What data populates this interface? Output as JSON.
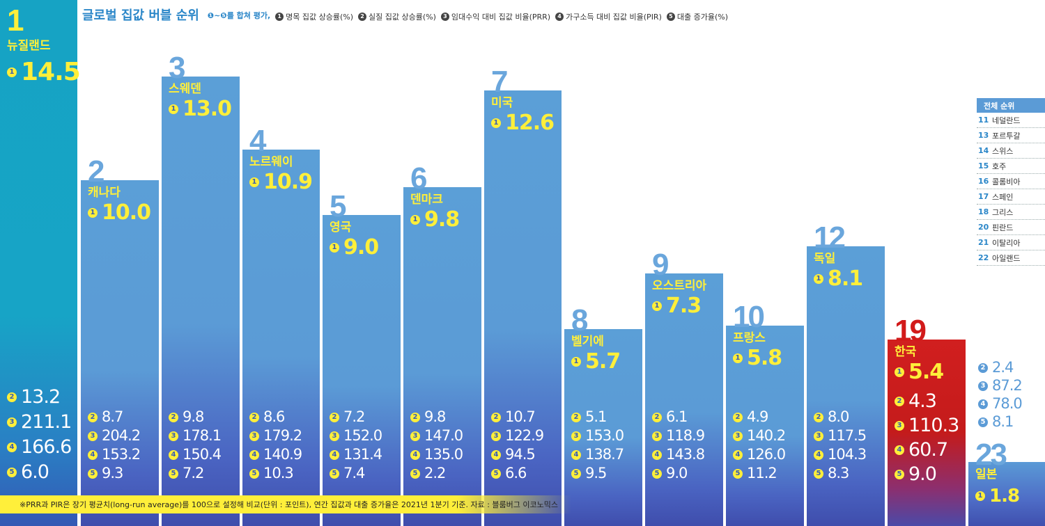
{
  "header": {
    "title": "글로벌 집값 버블 순위",
    "legend": [
      {
        "badge": "",
        "text": "❶~❺를 합쳐 평가,"
      },
      {
        "badge": "1",
        "text": "명목 집값 상승률(%)"
      },
      {
        "badge": "2",
        "text": "실질 집값 상승률(%)"
      },
      {
        "badge": "3",
        "text": "임대수익 대비 집값 비율(PRR)"
      },
      {
        "badge": "4",
        "text": "가구소득 대비 집값 비율(PIR)"
      },
      {
        "badge": "5",
        "text": "대출 증가율(%)"
      }
    ]
  },
  "chart_data": {
    "type": "bar",
    "title": "글로벌 집값 버블 순위",
    "categories": [
      "뉴질랜드",
      "캐나다",
      "스웨덴",
      "노르웨이",
      "영국",
      "덴마크",
      "미국",
      "벨기에",
      "오스트리아",
      "프랑스",
      "독일",
      "한국",
      "일본"
    ],
    "ranks": [
      "1",
      "2",
      "3",
      "4",
      "5",
      "6",
      "7",
      "8",
      "9",
      "10",
      "12",
      "19",
      "23"
    ],
    "series": [
      {
        "name": "명목 집값 상승률(%)",
        "values": [
          14.5,
          10.0,
          13.0,
          10.9,
          9.0,
          9.8,
          12.6,
          5.7,
          7.3,
          5.8,
          8.1,
          5.4,
          1.8
        ]
      },
      {
        "name": "실질 집값 상승률(%)",
        "values": [
          13.2,
          8.7,
          9.8,
          8.6,
          7.2,
          9.8,
          10.7,
          5.1,
          6.1,
          4.9,
          8.0,
          4.3,
          2.4
        ]
      },
      {
        "name": "임대수익 대비 집값 비율(PRR)",
        "values": [
          211.1,
          204.2,
          178.1,
          179.2,
          152.0,
          147.0,
          122.9,
          153.0,
          118.9,
          140.2,
          117.5,
          110.3,
          87.2
        ]
      },
      {
        "name": "가구소득 대비 집값 비율(PIR)",
        "values": [
          166.6,
          153.2,
          150.4,
          140.9,
          131.4,
          135.0,
          94.5,
          138.7,
          143.8,
          126.0,
          104.3,
          60.7,
          78.0
        ]
      },
      {
        "name": "대출 증가율(%)",
        "values": [
          6.0,
          9.3,
          7.2,
          10.3,
          7.4,
          2.2,
          6.6,
          9.5,
          9.0,
          11.2,
          8.3,
          9.0,
          8.1
        ]
      }
    ],
    "display": {
      "score": [
        "14.5",
        "10.0",
        "13.0",
        "10.9",
        "9.0",
        "9.8",
        "12.6",
        "5.7",
        "7.3",
        "5.8",
        "8.1",
        "5.4",
        "1.8"
      ],
      "s2": [
        "13.2",
        "8.7",
        "9.8",
        "8.6",
        "7.2",
        "9.8",
        "10.7",
        "5.1",
        "6.1",
        "4.9",
        "8.0",
        "4.3",
        "2.4"
      ],
      "s3": [
        "211.1",
        "204.2",
        "178.1",
        "179.2",
        "152.0",
        "147.0",
        "122.9",
        "153.0",
        "118.9",
        "140.2",
        "117.5",
        "110.3",
        "87.2"
      ],
      "s4": [
        "166.6",
        "153.2",
        "150.4",
        "140.9",
        "131.4",
        "135.0",
        "94.5",
        "138.7",
        "143.8",
        "126.0",
        "104.3",
        "60.7",
        "78.0"
      ],
      "s5": [
        "6.0",
        "9.3",
        "7.2",
        "10.3",
        "7.4",
        "2.2",
        "6.6",
        "9.5",
        "9.0",
        "11.2",
        "8.3",
        "9.0",
        "8.1"
      ]
    },
    "highlight": "한국",
    "colors": {
      "bar": "#5b9bd6",
      "first": "#17a4c6",
      "highlight": "#c41b1b",
      "label": "#ffef3a",
      "title": "#2a86c8"
    }
  },
  "overall_rank": {
    "title": "전체 순위",
    "rows": [
      {
        "rank": "11",
        "name": "네덜란드"
      },
      {
        "rank": "13",
        "name": "포르투갈"
      },
      {
        "rank": "14",
        "name": "스위스"
      },
      {
        "rank": "15",
        "name": "호주"
      },
      {
        "rank": "16",
        "name": "콜롬비아"
      },
      {
        "rank": "17",
        "name": "스페인"
      },
      {
        "rank": "18",
        "name": "그리스"
      },
      {
        "rank": "20",
        "name": "핀란드"
      },
      {
        "rank": "21",
        "name": "이탈리아"
      },
      {
        "rank": "22",
        "name": "아일랜드"
      }
    ]
  },
  "footnote": "※PRR과 PIR은 장기 평균치(long-run average)를 100으로 설정해 비교(단위 : 포인트), 연간 집값과 대출 증가율은 2021년 1분기 기준. 자료 : 블룸버그 이코노믹스"
}
